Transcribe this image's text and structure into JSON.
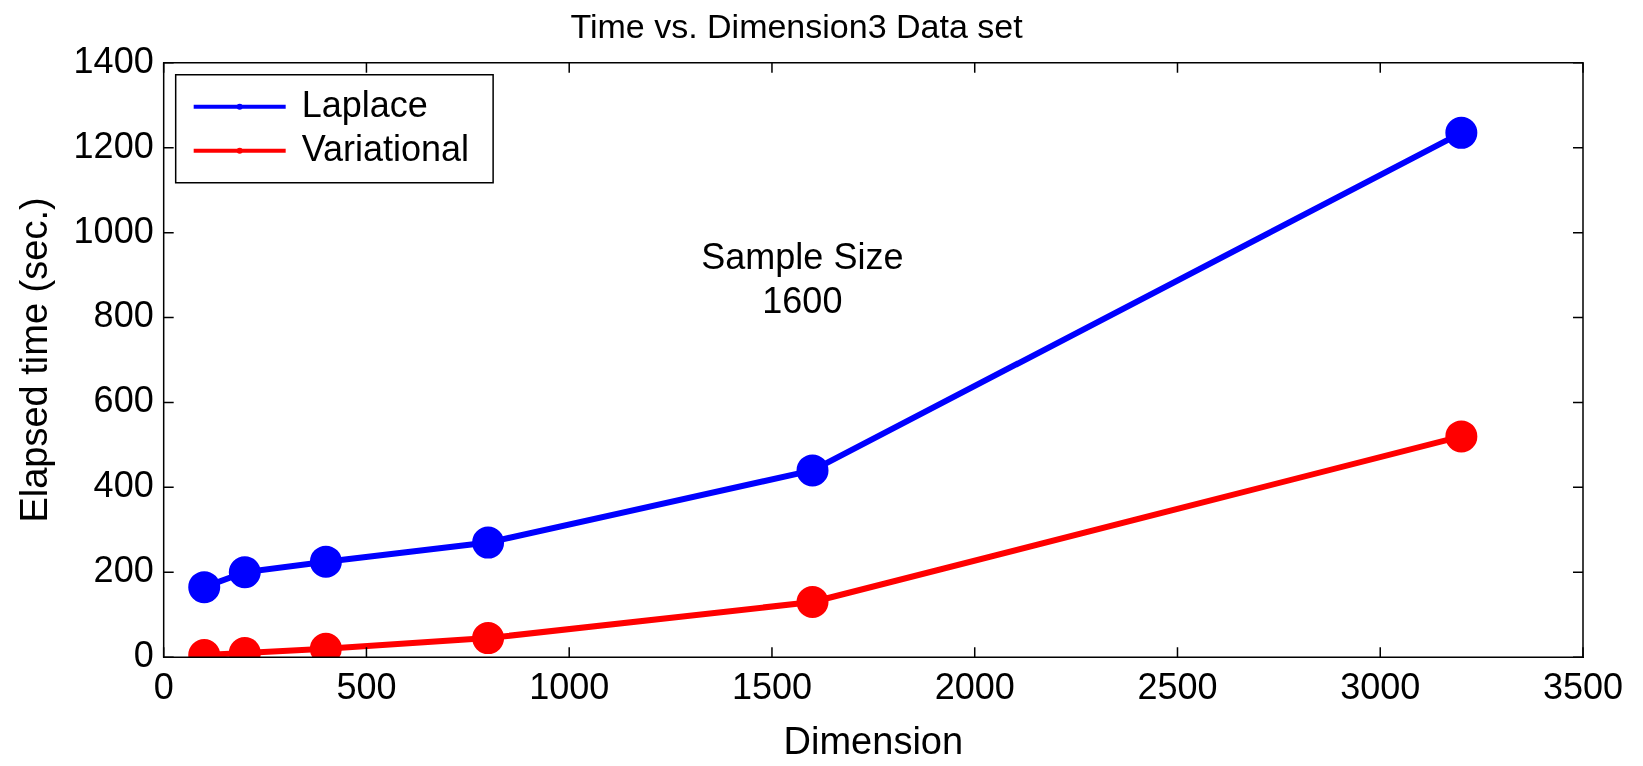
{
  "chart_data": {
    "type": "line",
    "title": "Time vs. Dimension3 Data set",
    "xlabel": "Dimension",
    "ylabel": "Elapsed time (sec.)",
    "x": [
      100,
      200,
      400,
      800,
      1600,
      3200
    ],
    "series": [
      {
        "name": "Laplace",
        "color": "#0000ff",
        "values": [
          165,
          200,
          225,
          270,
          440,
          1235
        ]
      },
      {
        "name": "Variational",
        "color": "#ff0000",
        "values": [
          5,
          10,
          20,
          45,
          130,
          520
        ]
      }
    ],
    "xlim": [
      0,
      3500
    ],
    "xticks": [
      0,
      500,
      1000,
      1500,
      2000,
      2500,
      3000,
      3500
    ],
    "ylim": [
      0,
      1400
    ],
    "yticks": [
      0,
      200,
      400,
      600,
      800,
      1000,
      1200,
      1400
    ],
    "annotations": [
      "Sample Size\n1600"
    ],
    "legend": "top left",
    "marker": "circle",
    "line_style": "solid",
    "grid": false
  }
}
